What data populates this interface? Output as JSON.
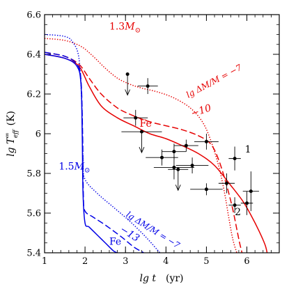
{
  "chart_data": {
    "type": "line",
    "xlabel": "lg t",
    "xlabel_unit": "(yr)",
    "ylabel": "lg T",
    "ylabel_sup": "∞",
    "ylabel_sub": "eff",
    "ylabel_unit": "(K)",
    "xlim": [
      1,
      6.8
    ],
    "ylim": [
      5.4,
      6.6
    ],
    "xticks": [
      1,
      2,
      3,
      4,
      5,
      6
    ],
    "xtick_labels": [
      "1",
      "2",
      "3",
      "4",
      "5",
      "6"
    ],
    "yticks": [
      5.4,
      5.6,
      5.8,
      6.0,
      6.2,
      6.4,
      6.6
    ],
    "ytick_labels": [
      "5.4",
      "5.6",
      "5.8",
      "6",
      "6.2",
      "6.4",
      "6.6"
    ],
    "x_minor_step": 0.2,
    "y_minor_step": 0.05,
    "colors": {
      "red": "#e60000",
      "blue": "#0000e6",
      "black": "#000000"
    },
    "series": [
      {
        "color": "red",
        "dash": "solid",
        "x": [
          1.0,
          1.5,
          1.85,
          2.1,
          2.4,
          2.8,
          3.2,
          3.6,
          4.0,
          4.4,
          4.8,
          5.2,
          5.6,
          5.9,
          6.1,
          6.3,
          6.45,
          6.5
        ],
        "y": [
          6.4,
          6.38,
          6.34,
          6.24,
          6.14,
          6.08,
          6.04,
          6.0,
          5.975,
          5.94,
          5.9,
          5.84,
          5.74,
          5.66,
          5.59,
          5.51,
          5.44,
          5.4
        ]
      },
      {
        "color": "red",
        "dash": "dashed",
        "x": [
          1.0,
          1.5,
          1.85,
          2.1,
          2.4,
          2.8,
          3.2,
          3.6,
          4.0,
          4.4,
          4.8,
          5.1,
          5.3,
          5.5,
          5.65,
          5.75,
          5.82,
          5.88
        ],
        "y": [
          6.41,
          6.39,
          6.35,
          6.28,
          6.2,
          6.13,
          6.09,
          6.06,
          6.04,
          6.02,
          5.99,
          5.95,
          5.87,
          5.74,
          5.62,
          5.52,
          5.45,
          5.4
        ]
      },
      {
        "color": "red",
        "dash": "dotted",
        "x": [
          1.0,
          1.5,
          1.9,
          2.2,
          2.5,
          2.8,
          3.1,
          3.4,
          3.8,
          4.2,
          4.6,
          4.9,
          5.1,
          5.3,
          5.45,
          5.55,
          5.65,
          5.75
        ],
        "y": [
          6.48,
          6.47,
          6.44,
          6.39,
          6.33,
          6.28,
          6.25,
          6.23,
          6.21,
          6.18,
          6.13,
          6.06,
          5.97,
          5.84,
          5.7,
          5.58,
          5.47,
          5.4
        ]
      },
      {
        "color": "blue",
        "dash": "solid",
        "x": [
          1.0,
          1.5,
          1.8,
          1.9,
          1.93,
          1.95,
          2.0,
          2.1,
          2.3,
          2.5,
          2.7,
          2.8
        ],
        "y": [
          6.4,
          6.38,
          6.34,
          6.25,
          6.0,
          5.7,
          5.55,
          5.53,
          5.49,
          5.45,
          5.41,
          5.4
        ]
      },
      {
        "color": "blue",
        "dash": "dashed",
        "x": [
          1.0,
          1.5,
          1.8,
          1.9,
          1.94,
          1.96,
          2.0,
          2.2,
          2.5,
          2.9,
          3.2,
          3.45
        ],
        "y": [
          6.41,
          6.39,
          6.35,
          6.27,
          6.0,
          5.68,
          5.61,
          5.58,
          5.54,
          5.48,
          5.43,
          5.4
        ]
      },
      {
        "color": "blue",
        "dash": "dotted",
        "x": [
          1.0,
          1.5,
          1.7,
          1.85,
          1.92,
          1.95,
          2.0,
          2.3,
          2.7,
          3.1,
          3.5,
          3.85
        ],
        "y": [
          6.5,
          6.49,
          6.46,
          6.38,
          6.15,
          5.86,
          5.77,
          5.7,
          5.63,
          5.56,
          5.48,
          5.4
        ]
      }
    ],
    "observations": [
      {
        "x": 3.05,
        "y": 6.3,
        "upper_limit": true
      },
      {
        "x": 3.55,
        "y": 6.24,
        "xerr": 0.25,
        "yerr": 0.04
      },
      {
        "x": 3.25,
        "y": 6.08,
        "xerr": 0.3,
        "yerr": 0.04
      },
      {
        "x": 3.4,
        "y": 6.01,
        "xerr": 0.5,
        "upper_limit": true
      },
      {
        "x": 3.9,
        "y": 5.88,
        "xerr": 0.4,
        "yerr": 0.04
      },
      {
        "x": 4.2,
        "y": 5.91,
        "xerr": 0.3,
        "yerr": 0.04
      },
      {
        "x": 4.5,
        "y": 5.94,
        "xerr": 0.3,
        "yerr": 0.03
      },
      {
        "x": 4.2,
        "y": 5.83,
        "xerr": 0.5,
        "yerr": 0.06
      },
      {
        "x": 4.3,
        "y": 5.82,
        "xerr": 0.25,
        "upper_limit": true
      },
      {
        "x": 4.65,
        "y": 5.84,
        "xerr": 0.4,
        "yerr": 0.04
      },
      {
        "x": 5.0,
        "y": 5.96,
        "xerr": 0.3,
        "yerr": 0.04
      },
      {
        "x": 5.0,
        "y": 5.72,
        "xerr": 0.4,
        "yerr": 0.03
      },
      {
        "x": 5.5,
        "y": 5.75,
        "xerr": 0.2,
        "yerr": 0.05
      },
      {
        "x": 5.7,
        "y": 5.875,
        "xerr": 0.15,
        "yerr": 0.06
      },
      {
        "x": 5.7,
        "y": 5.64,
        "xerr": 0.15,
        "yerr": 0.04
      },
      {
        "x": 6.0,
        "y": 5.65,
        "xerr": 0.15,
        "yerr": 0.06
      },
      {
        "x": 6.1,
        "y": 5.71,
        "xerr": 0.2,
        "yerr": 0.1
      }
    ],
    "annotations": [
      {
        "id": "mass-red",
        "text": "1.3",
        "sub": "⊙",
        "color": "red",
        "x": 2.6,
        "y": 6.525
      },
      {
        "id": "dm-red",
        "text": "lg ΔM/M = −7",
        "color": "red",
        "x": 4.55,
        "y": 6.18,
        "angle": -28
      },
      {
        "id": "dm-red-10",
        "text": "−10",
        "color": "red",
        "x": 4.65,
        "y": 6.085,
        "angle": -18
      },
      {
        "id": "fe-red",
        "text": "Fe",
        "color": "red",
        "x": 3.35,
        "y": 6.035
      },
      {
        "id": "mass-blue",
        "text": "1.5",
        "sub": "⊙",
        "color": "blue",
        "x": 1.35,
        "y": 5.82
      },
      {
        "id": "dm-blue",
        "text": "lg ΔM/M = −7",
        "color": "blue",
        "x": 3.0,
        "y": 5.585,
        "angle": 32
      },
      {
        "id": "dm-blue-13",
        "text": "−13",
        "color": "blue",
        "x": 2.85,
        "y": 5.51,
        "angle": 32
      },
      {
        "id": "fe-blue",
        "text": "Fe",
        "color": "blue",
        "x": 2.6,
        "y": 5.44
      },
      {
        "id": "label-1",
        "text": "1",
        "color": "black",
        "x": 5.95,
        "y": 5.905
      },
      {
        "id": "label-2",
        "text": "2",
        "color": "black",
        "x": 5.7,
        "y": 5.59
      }
    ]
  }
}
